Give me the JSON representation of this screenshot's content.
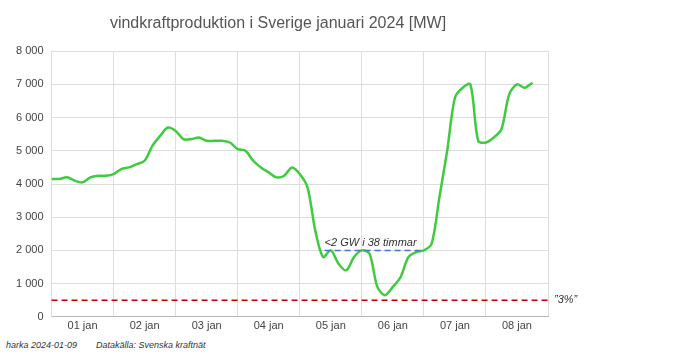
{
  "chart_data": {
    "type": "line",
    "title": "vindkraftproduktion i Sverige januari 2024 [MW]",
    "x": [
      0,
      0.125,
      0.25,
      0.375,
      0.5,
      0.625,
      0.75,
      0.875,
      1,
      1.125,
      1.25,
      1.375,
      1.5,
      1.625,
      1.75,
      1.875,
      2,
      2.125,
      2.25,
      2.375,
      2.5,
      2.625,
      2.75,
      2.875,
      3,
      3.125,
      3.25,
      3.375,
      3.5,
      3.625,
      3.75,
      3.875,
      4,
      4.125,
      4.25,
      4.375,
      4.5,
      4.625,
      4.75,
      4.875,
      5,
      5.125,
      5.25,
      5.375,
      5.5,
      5.625,
      5.75,
      5.875,
      6,
      6.125,
      6.25,
      6.375,
      6.5,
      6.625,
      6.75,
      6.875,
      7,
      7.125,
      7.25,
      7.375,
      7.5,
      7.625,
      7.75
    ],
    "values": [
      4150,
      4150,
      4200,
      4100,
      4050,
      4200,
      4250,
      4250,
      4300,
      4450,
      4500,
      4600,
      4700,
      5150,
      5450,
      5700,
      5600,
      5350,
      5350,
      5400,
      5300,
      5300,
      5300,
      5250,
      5050,
      5000,
      4700,
      4500,
      4350,
      4200,
      4250,
      4500,
      4300,
      3900,
      2600,
      1800,
      2000,
      1600,
      1400,
      1800,
      2000,
      1900,
      900,
      650,
      900,
      1200,
      1800,
      1950,
      2000,
      2200,
      3600,
      5000,
      6600,
      6900,
      7000,
      5300,
      5250,
      5400,
      5650,
      6700,
      7000,
      6900,
      7050
    ],
    "color": "#3ecc3e",
    "xlim": [
      0,
      8
    ],
    "xticks": [
      {
        "value": 0.5,
        "label": "01 jan"
      },
      {
        "value": 1.5,
        "label": "02 jan"
      },
      {
        "value": 2.5,
        "label": "03 jan"
      },
      {
        "value": 3.5,
        "label": "04 jan"
      },
      {
        "value": 4.5,
        "label": "05 jan"
      },
      {
        "value": 5.5,
        "label": "06 jan"
      },
      {
        "value": 6.5,
        "label": "07 jan"
      },
      {
        "value": 7.5,
        "label": "08 jan"
      }
    ],
    "ylim": [
      0,
      8000
    ],
    "yticks": [
      0,
      {
        "value": 1000,
        "label": "1 000"
      },
      {
        "value": 2000,
        "label": "2 000"
      },
      {
        "value": 3000,
        "label": "3 000"
      },
      {
        "value": 4000,
        "label": "4 000"
      },
      {
        "value": 5000,
        "label": "5 000"
      },
      {
        "value": 6000,
        "label": "6 000"
      },
      {
        "value": 7000,
        "label": "7 000"
      },
      {
        "value": 8000,
        "label": "8 000"
      }
    ],
    "grid": true,
    "annotations": [
      {
        "text": "<2 GW i 38 timmar",
        "x": [
          4.4,
          6.0
        ],
        "y": 2000,
        "color": "#4472c4",
        "line_style": "dashed"
      },
      {
        "text": "”3%”",
        "y": 500,
        "color": "#c00000",
        "line_style": "dashed"
      }
    ],
    "footer": [
      "harka 2024-01-09",
      "Datakälla: Svenska kraftnät"
    ]
  }
}
